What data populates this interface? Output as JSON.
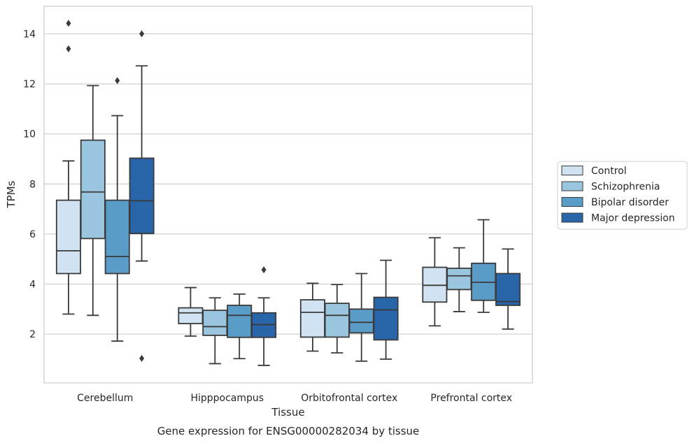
{
  "chart_data": {
    "type": "box",
    "caption": "Gene expression for ENSG00000282034 by tissue",
    "xlabel": "Tissue",
    "ylabel": "TPMs",
    "ylim": [
      0.05,
      15.1
    ],
    "yticks": [
      2,
      4,
      6,
      8,
      10,
      12,
      14
    ],
    "grid": "horizontal",
    "legend_position": "right",
    "categories": [
      "Cerebellum",
      "Hipppocampus",
      "Orbitofrontal cortex",
      "Prefrontal cortex"
    ],
    "series": [
      {
        "name": "Control",
        "color": "#d1e2f2",
        "boxes": [
          {
            "whislo": 2.8,
            "q1": 4.42,
            "med": 5.33,
            "q3": 7.35,
            "whishi": 8.92,
            "fliers": [
              14.42,
              13.4
            ]
          },
          {
            "whislo": 1.92,
            "q1": 2.42,
            "med": 2.85,
            "q3": 3.05,
            "whishi": 3.86,
            "fliers": []
          },
          {
            "whislo": 1.32,
            "q1": 1.88,
            "med": 2.87,
            "q3": 3.37,
            "whishi": 4.03,
            "fliers": []
          },
          {
            "whislo": 2.33,
            "q1": 3.28,
            "med": 3.95,
            "q3": 4.67,
            "whishi": 5.85,
            "fliers": []
          }
        ]
      },
      {
        "name": "Schizophrenia",
        "color": "#9ac5df",
        "boxes": [
          {
            "whislo": 2.75,
            "q1": 5.82,
            "med": 7.68,
            "q3": 9.75,
            "whishi": 11.93,
            "fliers": []
          },
          {
            "whislo": 0.82,
            "q1": 1.95,
            "med": 2.3,
            "q3": 2.95,
            "whishi": 3.45,
            "fliers": []
          },
          {
            "whislo": 1.25,
            "q1": 1.88,
            "med": 2.75,
            "q3": 3.23,
            "whishi": 3.98,
            "fliers": []
          },
          {
            "whislo": 2.9,
            "q1": 3.78,
            "med": 4.33,
            "q3": 4.63,
            "whishi": 5.45,
            "fliers": []
          }
        ]
      },
      {
        "name": "Bipolar disorder",
        "color": "#5a9cc8",
        "boxes": [
          {
            "whislo": 1.72,
            "q1": 4.42,
            "med": 5.1,
            "q3": 7.35,
            "whishi": 10.73,
            "fliers": [
              12.13
            ]
          },
          {
            "whislo": 1.02,
            "q1": 1.87,
            "med": 2.75,
            "q3": 3.15,
            "whishi": 3.6,
            "fliers": []
          },
          {
            "whislo": 0.92,
            "q1": 2.05,
            "med": 2.47,
            "q3": 3.0,
            "whishi": 4.42,
            "fliers": []
          },
          {
            "whislo": 2.87,
            "q1": 3.35,
            "med": 4.07,
            "q3": 4.83,
            "whishi": 6.57,
            "fliers": []
          }
        ]
      },
      {
        "name": "Major depression",
        "color": "#2965a9",
        "boxes": [
          {
            "whislo": 4.92,
            "q1": 6.02,
            "med": 7.33,
            "q3": 9.03,
            "whishi": 12.72,
            "fliers": [
              14.0,
              1.03
            ]
          },
          {
            "whislo": 0.75,
            "q1": 1.87,
            "med": 2.38,
            "q3": 2.85,
            "whishi": 3.45,
            "fliers": [
              4.57
            ]
          },
          {
            "whislo": 1.0,
            "q1": 1.77,
            "med": 2.97,
            "q3": 3.47,
            "whishi": 4.95,
            "fliers": []
          },
          {
            "whislo": 2.2,
            "q1": 3.15,
            "med": 3.3,
            "q3": 4.42,
            "whishi": 5.4,
            "fliers": []
          }
        ]
      }
    ]
  }
}
